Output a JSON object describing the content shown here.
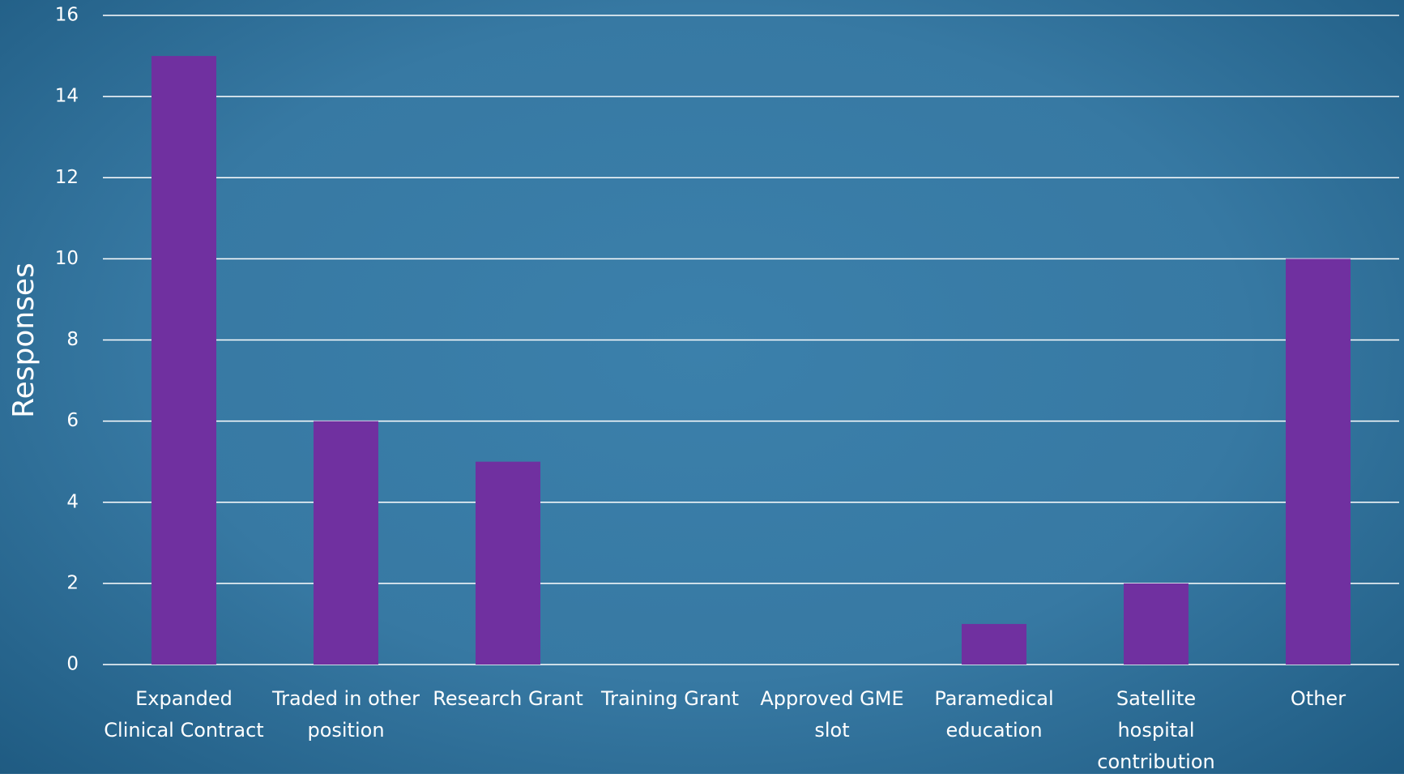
{
  "chart_data": {
    "type": "bar",
    "y_label": "Responses",
    "categories": [
      "Expanded Clinical Contract",
      "Traded in other position",
      "Research Grant",
      "Training Grant",
      "Approved GME slot",
      "Paramedical education",
      "Satellite hospital contribution",
      "Other"
    ],
    "values": [
      15,
      6,
      5,
      0,
      0,
      1,
      2,
      10
    ],
    "color": "#7030a0",
    "ylim": [
      0,
      16
    ],
    "yticks": [
      0,
      2,
      4,
      6,
      8,
      10,
      12,
      14,
      16
    ],
    "grid": true
  }
}
